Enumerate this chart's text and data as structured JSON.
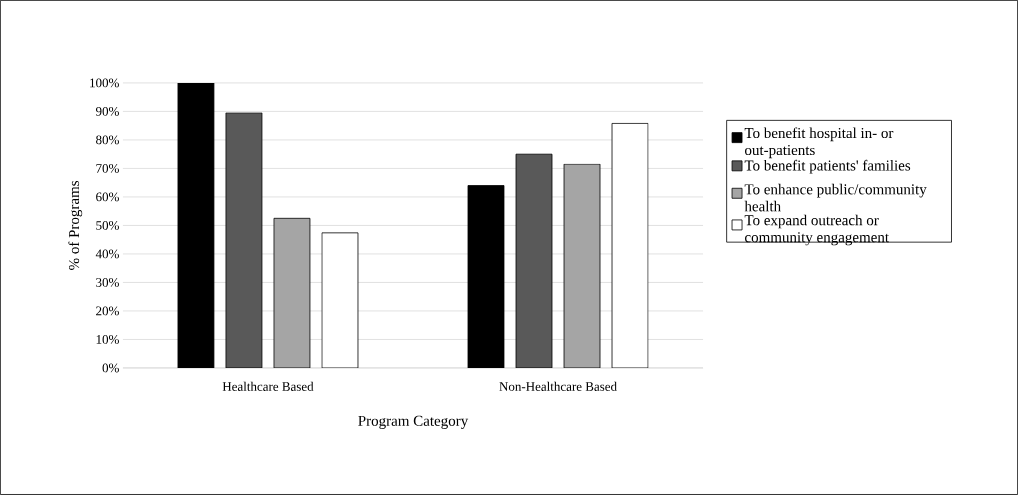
{
  "chart_data": {
    "type": "bar",
    "xlabel": "Program Category",
    "ylabel": "% of Programs",
    "categories": [
      "Healthcare Based",
      "Non-Healthcare Based"
    ],
    "series": [
      {
        "name": "To benefit hospital in- or out-patients",
        "color": "#000000",
        "values": [
          100,
          64
        ]
      },
      {
        "name": "To benefit patients' families",
        "color": "#595959",
        "values": [
          89.5,
          75
        ]
      },
      {
        "name": "To enhance public/community health",
        "color": "#a5a5a5",
        "values": [
          52.5,
          71.5
        ]
      },
      {
        "name": "To expand outreach or community engagement",
        "color": "#ffffff",
        "values": [
          47.4,
          85.8
        ]
      }
    ],
    "ylim": [
      0,
      100
    ],
    "yticks": [
      {
        "value": 0,
        "label": "0%"
      },
      {
        "value": 10,
        "label": "10%"
      },
      {
        "value": 20,
        "label": "20%"
      },
      {
        "value": 30,
        "label": "30%"
      },
      {
        "value": 40,
        "label": "40%"
      },
      {
        "value": 50,
        "label": "50%"
      },
      {
        "value": 60,
        "label": "60%"
      },
      {
        "value": 70,
        "label": "70%"
      },
      {
        "value": 80,
        "label": "80%"
      },
      {
        "value": 90,
        "label": "90%"
      },
      {
        "value": 100,
        "label": "100%"
      }
    ],
    "grid": "y",
    "legend": "right"
  }
}
